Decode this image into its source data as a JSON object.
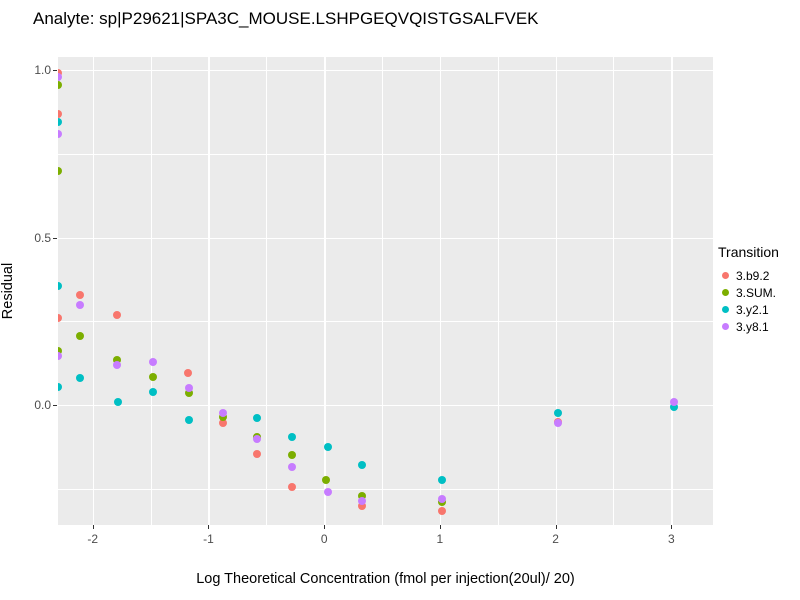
{
  "title": "Analyte: sp|P29621|SPA3C_MOUSE.LSHPGEQVQISTGSALFVEK",
  "chart_data": {
    "type": "scatter",
    "title": "Analyte: sp|P29621|SPA3C_MOUSE.LSHPGEQVQISTGSALFVEK",
    "xlabel": "Log Theoretical Concentration (fmol per injection(20ul)/ 20)",
    "ylabel": "Residual",
    "xlim": [
      -2.3,
      3.36
    ],
    "ylim": [
      -0.358,
      1.039
    ],
    "x_ticks": {
      "values": [
        -2,
        -1,
        0,
        1,
        2,
        3
      ],
      "labels": [
        "-2",
        "-1",
        "0",
        "1",
        "2",
        "3"
      ]
    },
    "y_ticks": {
      "values": [
        0.0,
        0.5,
        1.0
      ],
      "labels": [
        "0.0",
        "0.5",
        "1.0"
      ]
    },
    "grid": true,
    "panel_background": "#EBEBEB",
    "gridline_color": "#ffffff",
    "tick_label_color": "#4D4D4D",
    "legend": {
      "position": "right",
      "title": "Transition",
      "entries": [
        "3.b9.2",
        "3.SUM.",
        "3.y2.1",
        "3.y8.1"
      ]
    },
    "series": [
      {
        "name": "3.b9.2",
        "color": "#F8766D",
        "points": [
          [
            -2.3,
            0.99
          ],
          [
            -2.3,
            0.87
          ],
          [
            -2.3,
            0.26
          ],
          [
            -2.11,
            0.33
          ],
          [
            -1.79,
            0.27
          ],
          [
            -1.18,
            0.095
          ],
          [
            -0.87,
            -0.055
          ],
          [
            -0.58,
            -0.145
          ],
          [
            -0.28,
            -0.245
          ],
          [
            0.33,
            -0.3
          ],
          [
            1.02,
            -0.315
          ],
          [
            2.02,
            -0.05
          ]
        ]
      },
      {
        "name": "3.SUM.",
        "color": "#7CAE00",
        "points": [
          [
            -2.3,
            0.955
          ],
          [
            -2.3,
            0.7
          ],
          [
            -2.3,
            0.16
          ],
          [
            -2.11,
            0.205
          ],
          [
            -1.79,
            0.135
          ],
          [
            -1.48,
            0.085
          ],
          [
            -1.17,
            0.035
          ],
          [
            -0.87,
            -0.035
          ],
          [
            -0.58,
            -0.095
          ],
          [
            -0.28,
            -0.15
          ],
          [
            0.02,
            -0.225
          ],
          [
            0.33,
            -0.27
          ],
          [
            1.02,
            -0.29
          ]
        ]
      },
      {
        "name": "3.y2.1",
        "color": "#00BFC4",
        "points": [
          [
            -2.3,
            0.845
          ],
          [
            -2.3,
            0.355
          ],
          [
            -2.3,
            0.055
          ],
          [
            -2.11,
            0.08
          ],
          [
            -1.78,
            0.01
          ],
          [
            -1.48,
            0.04
          ],
          [
            -1.17,
            -0.045
          ],
          [
            -0.58,
            -0.04
          ],
          [
            -0.28,
            -0.095
          ],
          [
            0.03,
            -0.125
          ],
          [
            0.33,
            -0.18
          ],
          [
            1.02,
            -0.225
          ],
          [
            2.02,
            -0.025
          ],
          [
            3.02,
            -0.005
          ]
        ]
      },
      {
        "name": "3.y8.1",
        "color": "#C77CFF",
        "points": [
          [
            -2.3,
            0.98
          ],
          [
            -2.3,
            0.81
          ],
          [
            -2.3,
            0.145
          ],
          [
            -2.11,
            0.3
          ],
          [
            -1.79,
            0.12
          ],
          [
            -1.48,
            0.13
          ],
          [
            -1.17,
            0.05
          ],
          [
            -0.87,
            -0.025
          ],
          [
            -0.58,
            -0.1
          ],
          [
            -0.28,
            -0.185
          ],
          [
            0.03,
            -0.26
          ],
          [
            0.33,
            -0.285
          ],
          [
            1.02,
            -0.28
          ],
          [
            2.02,
            -0.055
          ],
          [
            3.02,
            0.01
          ]
        ]
      }
    ]
  }
}
